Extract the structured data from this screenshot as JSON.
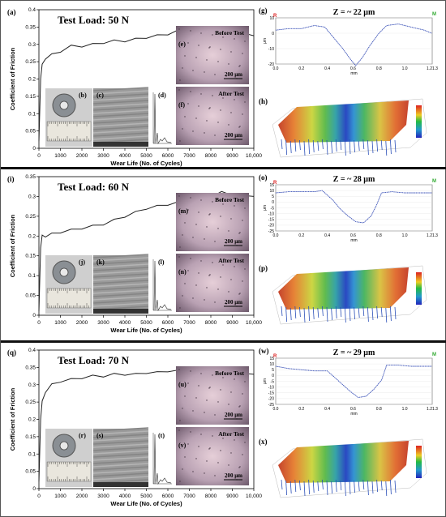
{
  "panels": [
    {
      "load_title": "Test Load: 50 N",
      "chart_label": "(a)",
      "photo_label": "(b)",
      "sem_label": "(c)",
      "spectrum_label": "(d)",
      "before_label": "(e)",
      "after_label": "(f)",
      "profile_label": "(g)",
      "surface_label": "(h)",
      "depth_text": "Z = ~ 22 μm"
    },
    {
      "load_title": "Test Load: 60 N",
      "chart_label": "(i)",
      "photo_label": "(j)",
      "sem_label": "(k)",
      "spectrum_label": "(l)",
      "before_label": "(m)",
      "after_label": "(n)",
      "profile_label": "(o)",
      "surface_label": "(p)",
      "depth_text": "Z = ~ 28 μm"
    },
    {
      "load_title": "Test Load: 70 N",
      "chart_label": "(q)",
      "photo_label": "(r)",
      "sem_label": "(s)",
      "spectrum_label": "(t)",
      "before_label": "(u)",
      "after_label": "(v)",
      "profile_label": "(w)",
      "surface_label": "(x)",
      "depth_text": "Z = ~ 29 μm"
    }
  ],
  "common": {
    "before_text": "Before Test",
    "after_text": "After Test",
    "scale_text": "200 μm",
    "profile_x_unit": "mm",
    "profile_y_unit": "μm",
    "marker_r": "R",
    "marker_m": "M"
  },
  "chart_data": [
    {
      "type": "line",
      "title": "Test Load: 50 N",
      "xlabel": "Wear Life (No. of Cycles)",
      "ylabel": "Coefficient of Friction",
      "xlim": [
        0,
        10000
      ],
      "ylim": [
        0,
        0.4
      ],
      "xticks": [
        "0",
        "1000",
        "2000",
        "3000",
        "4000",
        "5000",
        "6000",
        "7000",
        "8000",
        "9000",
        "10,000"
      ],
      "yticks": [
        "0",
        "0.05",
        "0.1",
        "0.15",
        "0.2",
        "0.25",
        "0.3",
        "0.35",
        "0.4"
      ],
      "series": [
        {
          "x": [
            0,
            80,
            150,
            300,
            600,
            1000,
            1500,
            2000,
            2500,
            3000,
            3500,
            4000,
            4500,
            5000,
            5500,
            6000,
            6500,
            7000,
            7500,
            8000,
            8500,
            9000,
            9500,
            10000
          ],
          "y": [
            0.02,
            0.2,
            0.24,
            0.26,
            0.27,
            0.28,
            0.295,
            0.295,
            0.3,
            0.305,
            0.31,
            0.31,
            0.315,
            0.32,
            0.325,
            0.33,
            0.34,
            0.335,
            0.33,
            0.33,
            0.335,
            0.33,
            0.33,
            0.325
          ]
        }
      ]
    },
    {
      "type": "line",
      "title": "Test Load: 60 N",
      "xlabel": "Wear Life (No. of Cycles)",
      "ylabel": "Coefficient of Friction",
      "xlim": [
        0,
        10000
      ],
      "ylim": [
        0,
        0.35
      ],
      "xticks": [
        "0",
        "1000",
        "2000",
        "3000",
        "4000",
        "5000",
        "6000",
        "7000",
        "8000",
        "9000",
        "10,000"
      ],
      "yticks": [
        "0",
        "0.05",
        "0.1",
        "0.15",
        "0.2",
        "0.25",
        "0.3",
        "0.35"
      ],
      "series": [
        {
          "x": [
            0,
            80,
            150,
            300,
            600,
            1000,
            1500,
            2000,
            2500,
            3000,
            3500,
            4000,
            4500,
            5000,
            5500,
            6000,
            6500,
            7000,
            7500,
            8000,
            8500,
            9000,
            9500,
            10000
          ],
          "y": [
            0.01,
            0.17,
            0.2,
            0.2,
            0.205,
            0.21,
            0.215,
            0.22,
            0.225,
            0.23,
            0.24,
            0.25,
            0.26,
            0.27,
            0.275,
            0.28,
            0.285,
            0.29,
            0.295,
            0.3,
            0.31,
            0.305,
            0.3,
            0.3
          ]
        }
      ]
    },
    {
      "type": "line",
      "title": "Test Load: 70 N",
      "xlabel": "Wear Life (No. of Cycles)",
      "ylabel": "Coefficient of Friction",
      "xlim": [
        0,
        10000
      ],
      "ylim": [
        0,
        0.4
      ],
      "xticks": [
        "0",
        "1000",
        "2000",
        "3000",
        "4000",
        "5000",
        "6000",
        "7000",
        "8000",
        "9000",
        "10,000"
      ],
      "yticks": [
        "0",
        "0.05",
        "0.1",
        "0.15",
        "0.2",
        "0.25",
        "0.3",
        "0.35",
        "0.4"
      ],
      "series": [
        {
          "x": [
            0,
            80,
            150,
            300,
            600,
            1000,
            1500,
            2000,
            2500,
            3000,
            3500,
            4000,
            4500,
            5000,
            5500,
            6000,
            6500,
            7000,
            7500,
            8000,
            8500,
            9000,
            9500,
            10000
          ],
          "y": [
            0.02,
            0.2,
            0.25,
            0.28,
            0.3,
            0.31,
            0.315,
            0.32,
            0.325,
            0.325,
            0.33,
            0.33,
            0.33,
            0.335,
            0.335,
            0.34,
            0.34,
            0.33,
            0.33,
            0.33,
            0.335,
            0.33,
            0.33,
            0.33
          ]
        }
      ]
    },
    {
      "type": "line",
      "title": "Z = ~ 22 μm",
      "xlabel": "mm",
      "ylabel": "μm",
      "xlim": [
        0,
        1.213
      ],
      "ylim": [
        -20,
        10
      ],
      "xticks": [
        "0.0",
        "0.2",
        "0.4",
        "0.6",
        "0.8",
        "1.0",
        "1.21.3"
      ],
      "yticks": [
        "-20",
        "-10",
        "0",
        "10"
      ],
      "series": [
        {
          "x": [
            0,
            0.1,
            0.2,
            0.3,
            0.38,
            0.45,
            0.52,
            0.58,
            0.62,
            0.67,
            0.73,
            0.8,
            0.86,
            0.95,
            1.05,
            1.15,
            1.21
          ],
          "y": [
            2,
            3,
            3,
            5,
            4,
            -3,
            -10,
            -17,
            -21,
            -16,
            -8,
            0,
            5,
            6,
            4,
            2,
            0
          ]
        }
      ]
    },
    {
      "type": "line",
      "title": "Z = ~ 28 μm",
      "xlabel": "mm",
      "ylabel": "μm",
      "xlim": [
        0,
        1.213
      ],
      "ylim": [
        -25,
        15
      ],
      "xticks": [
        "0.0",
        "0.2",
        "0.4",
        "0.6",
        "0.8",
        "1.0",
        "1.21.3"
      ],
      "yticks": [
        "-25",
        "-20",
        "-15",
        "-10",
        "-5",
        "0",
        "5",
        "10",
        "15"
      ],
      "series": [
        {
          "x": [
            0,
            0.1,
            0.2,
            0.3,
            0.36,
            0.44,
            0.5,
            0.56,
            0.62,
            0.68,
            0.74,
            0.78,
            0.82,
            0.9,
            1.0,
            1.1,
            1.21
          ],
          "y": [
            8,
            9,
            9,
            9,
            10,
            2,
            -6,
            -12,
            -17,
            -18,
            -12,
            -3,
            8,
            9,
            8,
            8,
            8
          ]
        }
      ]
    },
    {
      "type": "line",
      "title": "Z = ~ 29 μm",
      "xlabel": "mm",
      "ylabel": "μm",
      "xlim": [
        0,
        1.213
      ],
      "ylim": [
        -25,
        15
      ],
      "xticks": [
        "0.0",
        "0.2",
        "0.4",
        "0.6",
        "0.8",
        "1.0",
        "1.21.3"
      ],
      "yticks": [
        "-25",
        "-20",
        "-15",
        "-10",
        "-5",
        "0",
        "5",
        "10",
        "15"
      ],
      "series": [
        {
          "x": [
            0,
            0.1,
            0.2,
            0.3,
            0.4,
            0.46,
            0.52,
            0.58,
            0.64,
            0.7,
            0.76,
            0.82,
            0.86,
            0.95,
            1.05,
            1.15,
            1.21
          ],
          "y": [
            8,
            6,
            5,
            4,
            4,
            -2,
            -8,
            -14,
            -19,
            -18,
            -12,
            -4,
            9,
            9,
            8,
            8,
            8
          ]
        }
      ]
    }
  ]
}
